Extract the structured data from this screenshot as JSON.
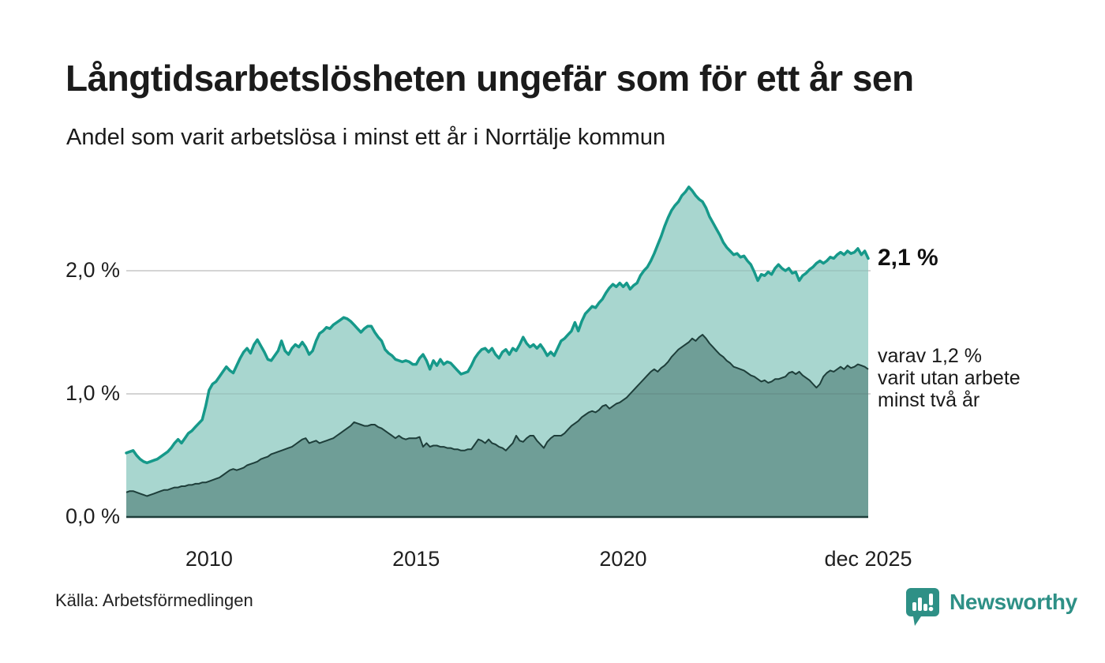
{
  "header": {
    "title": "Långtidsarbetslösheten ungefär som för ett år sen",
    "subtitle": "Andel som varit arbetslösa i minst ett år i Norrtälje kommun"
  },
  "annotations": {
    "latest_total_label": "2,1 %",
    "two_years_line1": "varav 1,2 %",
    "two_years_line2": "varit utan arbete",
    "two_years_line3": "minst två år"
  },
  "footer": {
    "source": "Källa: Arbetsförmedlingen",
    "brand_name": "Newsworthy"
  },
  "colors": {
    "line_total": "#16998a",
    "fill_total": "#a8d6cf",
    "fill_two_years": "#6f9e97",
    "line_two_years": "#1e3e3a",
    "grid": "#d9d9d9",
    "axis": "#1e3e3a",
    "brand_teal": "#2e9086",
    "text": "#1a1a1a"
  },
  "chart_data": {
    "type": "area",
    "title": "Långtidsarbetslösheten ungefär som för ett år sen",
    "subtitle": "Andel som varit arbetslösa i minst ett år i Norrtälje kommun",
    "unit": "percent of workforce",
    "frequency": "monthly",
    "x_domain": [
      2008.0,
      2025.92
    ],
    "ylim": [
      0,
      2.9
    ],
    "grid": "horizontal",
    "y_ticks": [
      {
        "value": 0,
        "label": "0,0 %"
      },
      {
        "value": 1,
        "label": "1,0 %"
      },
      {
        "value": 2,
        "label": "2,0 %"
      }
    ],
    "x_ticks": [
      {
        "t": 2010.0,
        "label": "2010"
      },
      {
        "t": 2015.0,
        "label": "2015"
      },
      {
        "t": 2020.0,
        "label": "2020"
      },
      {
        "t": 2025.92,
        "label": "dec 2025"
      }
    ],
    "series": [
      {
        "name": "Andel som varit arbetslösa minst ett år",
        "latest_value": 2.1,
        "latest_label": "2,1 %",
        "values": [
          0.52,
          0.53,
          0.54,
          0.5,
          0.47,
          0.45,
          0.44,
          0.45,
          0.46,
          0.47,
          0.49,
          0.51,
          0.53,
          0.56,
          0.6,
          0.63,
          0.6,
          0.64,
          0.68,
          0.7,
          0.73,
          0.76,
          0.79,
          0.9,
          1.03,
          1.08,
          1.1,
          1.14,
          1.18,
          1.22,
          1.19,
          1.17,
          1.23,
          1.29,
          1.34,
          1.37,
          1.33,
          1.4,
          1.44,
          1.39,
          1.34,
          1.28,
          1.27,
          1.31,
          1.35,
          1.43,
          1.35,
          1.32,
          1.37,
          1.4,
          1.38,
          1.42,
          1.38,
          1.32,
          1.35,
          1.43,
          1.49,
          1.51,
          1.54,
          1.53,
          1.56,
          1.58,
          1.6,
          1.62,
          1.61,
          1.59,
          1.56,
          1.53,
          1.5,
          1.53,
          1.55,
          1.55,
          1.5,
          1.46,
          1.43,
          1.36,
          1.33,
          1.31,
          1.28,
          1.27,
          1.26,
          1.27,
          1.26,
          1.24,
          1.24,
          1.29,
          1.32,
          1.27,
          1.2,
          1.27,
          1.23,
          1.28,
          1.24,
          1.26,
          1.25,
          1.22,
          1.19,
          1.16,
          1.17,
          1.18,
          1.23,
          1.29,
          1.33,
          1.36,
          1.37,
          1.34,
          1.37,
          1.32,
          1.29,
          1.34,
          1.36,
          1.32,
          1.37,
          1.35,
          1.4,
          1.46,
          1.41,
          1.38,
          1.4,
          1.37,
          1.4,
          1.36,
          1.31,
          1.34,
          1.31,
          1.37,
          1.43,
          1.45,
          1.48,
          1.51,
          1.58,
          1.51,
          1.59,
          1.65,
          1.68,
          1.71,
          1.7,
          1.74,
          1.77,
          1.82,
          1.86,
          1.89,
          1.87,
          1.9,
          1.87,
          1.9,
          1.85,
          1.88,
          1.9,
          1.96,
          2.0,
          2.03,
          2.08,
          2.14,
          2.21,
          2.28,
          2.36,
          2.43,
          2.49,
          2.53,
          2.56,
          2.61,
          2.64,
          2.68,
          2.65,
          2.61,
          2.58,
          2.56,
          2.51,
          2.44,
          2.39,
          2.34,
          2.29,
          2.23,
          2.19,
          2.16,
          2.13,
          2.14,
          2.11,
          2.12,
          2.08,
          2.05,
          1.99,
          1.92,
          1.97,
          1.96,
          1.99,
          1.97,
          2.02,
          2.05,
          2.02,
          2.0,
          2.02,
          1.98,
          1.99,
          1.92,
          1.96,
          1.98,
          2.01,
          2.03,
          2.06,
          2.08,
          2.06,
          2.08,
          2.11,
          2.1,
          2.13,
          2.15,
          2.13,
          2.16,
          2.14,
          2.15,
          2.18,
          2.13,
          2.16,
          2.1
        ]
      },
      {
        "name": "varav utan arbete minst två år",
        "latest_value": 1.2,
        "latest_label": "varav 1,2 % varit utan arbete minst två år",
        "values": [
          0.2,
          0.21,
          0.21,
          0.2,
          0.19,
          0.18,
          0.17,
          0.18,
          0.19,
          0.2,
          0.21,
          0.22,
          0.22,
          0.23,
          0.24,
          0.24,
          0.25,
          0.25,
          0.26,
          0.26,
          0.27,
          0.27,
          0.28,
          0.28,
          0.29,
          0.3,
          0.31,
          0.32,
          0.34,
          0.36,
          0.38,
          0.39,
          0.38,
          0.39,
          0.4,
          0.42,
          0.43,
          0.44,
          0.45,
          0.47,
          0.48,
          0.49,
          0.51,
          0.52,
          0.53,
          0.54,
          0.55,
          0.56,
          0.57,
          0.59,
          0.61,
          0.63,
          0.64,
          0.6,
          0.61,
          0.62,
          0.6,
          0.61,
          0.62,
          0.63,
          0.64,
          0.66,
          0.68,
          0.7,
          0.72,
          0.74,
          0.77,
          0.76,
          0.75,
          0.74,
          0.74,
          0.75,
          0.75,
          0.73,
          0.72,
          0.7,
          0.68,
          0.66,
          0.64,
          0.66,
          0.64,
          0.63,
          0.64,
          0.64,
          0.64,
          0.65,
          0.57,
          0.6,
          0.57,
          0.58,
          0.58,
          0.57,
          0.57,
          0.56,
          0.56,
          0.55,
          0.55,
          0.54,
          0.54,
          0.55,
          0.55,
          0.59,
          0.63,
          0.62,
          0.6,
          0.63,
          0.6,
          0.59,
          0.57,
          0.56,
          0.54,
          0.57,
          0.6,
          0.66,
          0.62,
          0.61,
          0.64,
          0.66,
          0.66,
          0.62,
          0.59,
          0.56,
          0.61,
          0.64,
          0.66,
          0.66,
          0.66,
          0.68,
          0.71,
          0.74,
          0.76,
          0.78,
          0.81,
          0.83,
          0.85,
          0.86,
          0.85,
          0.87,
          0.9,
          0.91,
          0.88,
          0.9,
          0.92,
          0.93,
          0.95,
          0.97,
          1.0,
          1.03,
          1.06,
          1.09,
          1.12,
          1.15,
          1.18,
          1.2,
          1.18,
          1.21,
          1.23,
          1.26,
          1.3,
          1.33,
          1.36,
          1.38,
          1.4,
          1.42,
          1.45,
          1.43,
          1.46,
          1.48,
          1.45,
          1.41,
          1.38,
          1.35,
          1.32,
          1.3,
          1.27,
          1.25,
          1.22,
          1.21,
          1.2,
          1.19,
          1.17,
          1.15,
          1.14,
          1.12,
          1.1,
          1.11,
          1.09,
          1.1,
          1.12,
          1.12,
          1.13,
          1.14,
          1.17,
          1.18,
          1.16,
          1.18,
          1.15,
          1.13,
          1.11,
          1.08,
          1.05,
          1.08,
          1.14,
          1.17,
          1.19,
          1.18,
          1.2,
          1.22,
          1.2,
          1.23,
          1.21,
          1.22,
          1.24,
          1.23,
          1.22,
          1.2
        ]
      }
    ],
    "legend_position": "annotated-right"
  }
}
